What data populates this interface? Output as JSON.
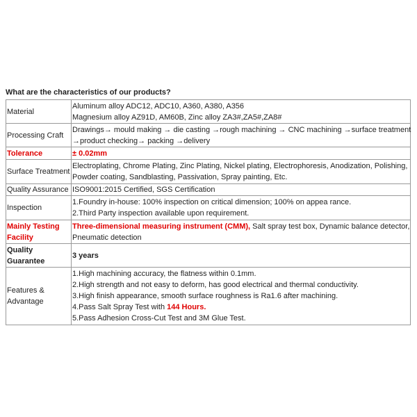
{
  "heading": "What are the characteristics of our products?",
  "table": {
    "rows": [
      {
        "label": "Material",
        "lines": [
          [
            "Aluminum alloy ADC12, ADC10, A360, A380, A356"
          ],
          [
            "Magnesium alloy AZ91D, AM60B, Zinc alloy ZA3#,ZA5#,ZA8#"
          ]
        ]
      },
      {
        "label": "Processing Craft",
        "lines": [
          [
            "Drawings→ mould making → die casting →rough machining → CNC machining →surface treatment"
          ],
          [
            "→product checking→ packing →delivery"
          ]
        ]
      },
      {
        "label": "Tolerance",
        "lines": [
          [
            "± 0.02mm"
          ]
        ]
      },
      {
        "label": "Surface Treatment",
        "lines": [
          [
            "Electroplating, Chrome Plating, Zinc Plating, Nickel plating, Electrophoresis, Anodization, Polishing,"
          ],
          [
            "Powder coating, Sandblasting, Passivation, Spray painting, Etc."
          ]
        ]
      },
      {
        "label": "Quality Assurance",
        "lines": [
          [
            "ISO9001:2015 Certified, SGS Certification"
          ]
        ]
      },
      {
        "label": "Inspection",
        "lines": [
          [
            "1.Foundry in-house: 100% inspection on critical dimension; 100% on appea rance."
          ],
          [
            "2.Third Party inspection available upon requirement."
          ]
        ]
      },
      {
        "label": "Mainly Testing Facility",
        "lines": [
          [
            "Three-dimensional measuring instrument (CMM),",
            " Salt spray test box, Dynamic balance detector,"
          ],
          [
            "Pneumatic detection"
          ]
        ]
      },
      {
        "label": "Quality Guarantee",
        "lines": [
          [
            "3 years"
          ]
        ]
      },
      {
        "label": "Features & Advantage",
        "lines": [
          [
            "1.High machining accuracy, the flatness within 0.1mm."
          ],
          [
            "2.High strength and not easy to deform, has good electrical and thermal conductivity."
          ],
          [
            "3.High finish appearance, smooth surface roughness is Ra1.6 after machining."
          ],
          [
            "4.Pass Salt Spray Test with ",
            "144 Hours."
          ],
          [
            "5.Pass Adhesion Cross-Cut Test and 3M Glue Test."
          ]
        ]
      }
    ]
  }
}
